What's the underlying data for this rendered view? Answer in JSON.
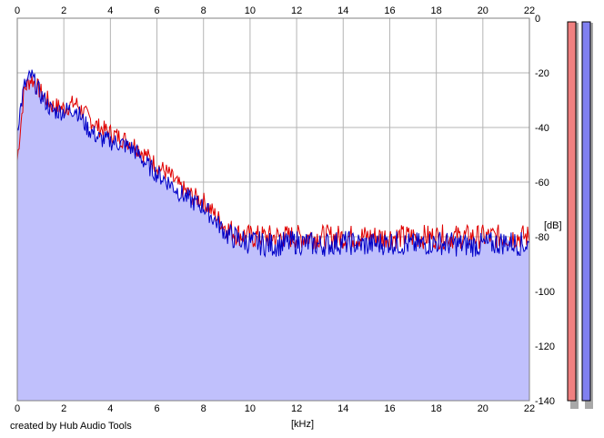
{
  "credit": "created by Hub Audio Tools",
  "chart_data": {
    "type": "area",
    "xlabel": "[kHz]",
    "ylabel": "[dB]",
    "xlim": [
      0,
      22
    ],
    "ylim": [
      -140,
      0
    ],
    "x_ticks": [
      0,
      2,
      4,
      6,
      8,
      10,
      12,
      14,
      16,
      18,
      20,
      22
    ],
    "y_ticks": [
      0,
      -20,
      -40,
      -60,
      -80,
      -100,
      -120,
      -140
    ],
    "grid": true,
    "series": [
      {
        "channel": "red",
        "color": "#e00000",
        "x": [
          0,
          0.3,
          0.6,
          1,
          1.5,
          2,
          2.5,
          3,
          3.5,
          4,
          4.5,
          5,
          5.5,
          6,
          6.5,
          7,
          7.5,
          8,
          8.5,
          9,
          9.5,
          10,
          11,
          12,
          13,
          14,
          15,
          16,
          17,
          18,
          19,
          20,
          21,
          22
        ],
        "y": [
          -52,
          -26,
          -22,
          -27,
          -32,
          -33,
          -31,
          -36,
          -40,
          -42,
          -44,
          -46,
          -50,
          -54,
          -57,
          -62,
          -65,
          -67,
          -72,
          -77,
          -79,
          -80,
          -80,
          -80,
          -80,
          -80,
          -80,
          -80,
          -80,
          -80,
          -80,
          -80,
          -80,
          -80
        ]
      },
      {
        "channel": "blue",
        "color": "#0000c8",
        "x": [
          0,
          0.3,
          0.6,
          1,
          1.5,
          2,
          2.5,
          3,
          3.5,
          4,
          4.5,
          5,
          5.5,
          6,
          6.5,
          7,
          7.5,
          8,
          8.5,
          9,
          9.5,
          10,
          11,
          12,
          13,
          14,
          15,
          16,
          17,
          18,
          19,
          20,
          21,
          22
        ],
        "y": [
          -40,
          -25,
          -21,
          -28,
          -34,
          -34,
          -33,
          -40,
          -44,
          -45,
          -46,
          -48,
          -53,
          -57,
          -60,
          -64,
          -67,
          -69,
          -74,
          -79,
          -81,
          -82,
          -83,
          -82,
          -83,
          -82,
          -83,
          -82,
          -83,
          -82,
          -83,
          -83,
          -82,
          -83
        ]
      }
    ],
    "level_meters": [
      {
        "channel": "red",
        "fill": "#f08080"
      },
      {
        "channel": "blue",
        "fill": "#8080f0"
      }
    ]
  }
}
